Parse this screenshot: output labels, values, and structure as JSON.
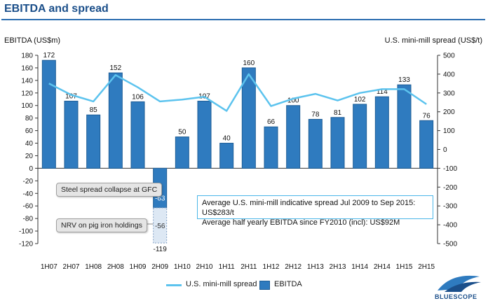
{
  "header": {
    "title": "EBITDA and spread"
  },
  "colors": {
    "bar": "#2f7bbf",
    "bar_dark": "#1e5d96",
    "line": "#5cc3ee",
    "title": "#1b4f8a"
  },
  "chart_data": {
    "type": "bar",
    "ylabel_left": "EBITDA (US$m)",
    "ylabel_right": "U.S. mini-mill spread (US$/t)",
    "ylim_left": [
      -120,
      180
    ],
    "ylim_right": [
      -500,
      500
    ],
    "left_ticks": [
      180,
      160,
      140,
      120,
      100,
      80,
      60,
      40,
      20,
      0,
      -20,
      -40,
      -60,
      -80,
      -100,
      -120
    ],
    "right_ticks": [
      500,
      400,
      300,
      200,
      100,
      0,
      -100,
      -200,
      -300,
      -400,
      -500
    ],
    "categories": [
      "1H07",
      "2H07",
      "1H08",
      "2H08",
      "1H09",
      "2H09",
      "1H10",
      "2H10",
      "1H11",
      "2H11",
      "1H12",
      "2H12",
      "1H13",
      "2H13",
      "1H14",
      "2H14",
      "1H15",
      "2H15"
    ],
    "series": [
      {
        "name": "EBITDA",
        "type": "bar",
        "axis": "left",
        "values": [
          172,
          107,
          85,
          152,
          106,
          -119,
          50,
          107,
          40,
          160,
          66,
          100,
          78,
          81,
          102,
          114,
          133,
          76
        ]
      },
      {
        "name": "U.S. mini-mill spread",
        "type": "line",
        "axis": "right",
        "values": [
          350,
          290,
          255,
          395,
          330,
          255,
          265,
          280,
          205,
          400,
          230,
          270,
          295,
          260,
          300,
          320,
          320,
          240
        ]
      }
    ],
    "bar_2H09_segments": [
      {
        "label": "Steel spread collapse at GFC",
        "value": -63
      },
      {
        "label": "NRV on pig iron holdings",
        "value": -56
      }
    ],
    "annotations": {
      "info_line1": "Average U.S. mini-mill indicative spread Jul 2009 to Sep 2015: US$283/t",
      "info_line2": "Average half yearly EBITDA since FY2010 (incl): US$92M"
    },
    "legend": [
      "U.S. mini-mill spread",
      "EBITDA"
    ],
    "legend_position": "bottom",
    "grid": false
  },
  "logo": {
    "text": "BLUESCOPE"
  }
}
